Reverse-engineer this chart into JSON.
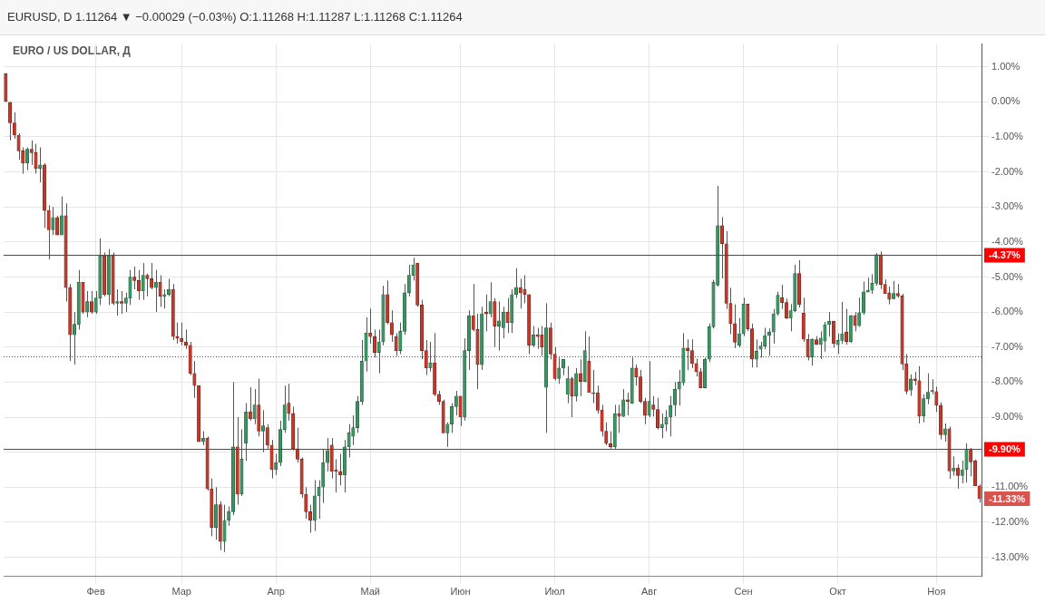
{
  "chart_data": {
    "type": "candlestick",
    "title": "EURO / US DOLLAR, Д",
    "subtitle": "EURUSD, D 1.11264 ▼ −0.00029 (−0.03%) O:1.11268 H:1.11287 L:1.11268 C:1.11264",
    "categories": [
      null,
      null,
      null,
      null,
      null,
      null,
      null,
      null,
      null,
      null,
      null,
      null,
      null,
      null,
      null,
      null,
      null,
      null,
      null,
      null,
      null,
      "Фев",
      null,
      null,
      null,
      null,
      null,
      null,
      null,
      null,
      null,
      null,
      null,
      null,
      null,
      null,
      null,
      null,
      null,
      null,
      null,
      "Мар",
      null,
      null,
      null,
      null,
      null,
      null,
      null,
      null,
      null,
      null,
      null,
      null,
      null,
      null,
      null,
      null,
      null,
      null,
      null,
      null,
      null,
      "Апр",
      null,
      null,
      null,
      null,
      null,
      null,
      null,
      null,
      null,
      null,
      null,
      null,
      null,
      null,
      null,
      null,
      null,
      null,
      null,
      null,
      null,
      "Май",
      null,
      null,
      null,
      null,
      null,
      null,
      null,
      null,
      null,
      null,
      null,
      null,
      null,
      null,
      null,
      null,
      null,
      null,
      null,
      null,
      "Июн",
      null,
      null,
      null,
      null,
      null,
      null,
      null,
      null,
      null,
      null,
      null,
      null,
      null,
      null,
      null,
      null,
      null,
      null,
      null,
      null,
      null,
      "Июл",
      null,
      null,
      null,
      null,
      null,
      null,
      null,
      null,
      null,
      null,
      null,
      null,
      null,
      null,
      null,
      null,
      null,
      null,
      null,
      null,
      null,
      "Авг",
      null,
      null,
      null,
      null,
      null,
      null,
      null,
      null,
      null,
      null,
      null,
      null,
      null,
      null,
      null,
      null,
      null,
      null,
      null,
      null,
      null,
      "Сен",
      null,
      null,
      null,
      null,
      null,
      null,
      null,
      null,
      null,
      null,
      null,
      null,
      null,
      null,
      null,
      null,
      null,
      null,
      null,
      null,
      null,
      "Окт",
      null,
      null,
      null,
      null,
      null,
      null,
      null,
      null,
      null,
      null,
      null,
      null,
      null,
      null,
      null,
      null,
      null,
      null,
      null,
      null,
      null,
      null,
      "Ноя",
      null,
      null,
      null,
      null,
      null,
      null,
      null,
      null,
      null,
      null
    ],
    "ohlc": [
      [
        0.8,
        0.8,
        0,
        0
      ],
      [
        0,
        0,
        -1.1,
        -0.6
      ],
      [
        -0.6,
        -0.3,
        -1.05,
        -0.95
      ],
      [
        -0.95,
        -0.9,
        -1.65,
        -1.4
      ],
      [
        -1.4,
        -1.3,
        -2.05,
        -1.75
      ],
      [
        -1.75,
        -1.3,
        -1.95,
        -1.35
      ],
      [
        -1.35,
        -1.1,
        -1.8,
        -1.45
      ],
      [
        -1.45,
        -1.2,
        -2.05,
        -1.9
      ],
      [
        -1.9,
        -1.3,
        -2.3,
        -1.8
      ],
      [
        -1.8,
        -1.75,
        -3.6,
        -3.1
      ],
      [
        -3.1,
        -2.95,
        -4.5,
        -3.65
      ],
      [
        -3.65,
        -3,
        -3.8,
        -3.3
      ],
      [
        -3.3,
        -3.25,
        -3.8,
        -3.8
      ],
      [
        -3.8,
        -2.7,
        -3.8,
        -3.25
      ],
      [
        -3.25,
        -2.9,
        -5.7,
        -5.3
      ],
      [
        -5.3,
        -5.2,
        -7.4,
        -6.65
      ],
      [
        -6.65,
        -6,
        -7.5,
        -6.35
      ],
      [
        -6.35,
        -4.8,
        -6.5,
        -5.15
      ],
      [
        -5.15,
        -5.15,
        -6.05,
        -6
      ],
      [
        -6,
        -5.4,
        -6.15,
        -5.7
      ],
      [
        -5.7,
        -5.4,
        -6.05,
        -6
      ],
      [
        -6,
        -5.4,
        -6.05,
        -5.6
      ],
      [
        -5.6,
        -3.9,
        -5.8,
        -4.4
      ],
      [
        -4.4,
        -4.3,
        -5.55,
        -5.5
      ],
      [
        -5.5,
        -4.2,
        -5.8,
        -4.4
      ],
      [
        -4.4,
        -4.3,
        -5.8,
        -5.75
      ],
      [
        -5.75,
        -5.35,
        -6.1,
        -5.7
      ],
      [
        -5.7,
        -5.4,
        -6.05,
        -5.75
      ],
      [
        -5.75,
        -5.45,
        -6,
        -5.6
      ],
      [
        -5.6,
        -4.8,
        -5.8,
        -5
      ],
      [
        -5,
        -4.7,
        -5.35,
        -5.1
      ],
      [
        -5.1,
        -4.8,
        -5.65,
        -5.4
      ],
      [
        -5.4,
        -4.6,
        -5.65,
        -4.95
      ],
      [
        -4.95,
        -4.9,
        -5.55,
        -5.05
      ],
      [
        -5.05,
        -4.6,
        -5.35,
        -5.3
      ],
      [
        -5.3,
        -4.8,
        -6,
        -5.15
      ],
      [
        -5.15,
        -4.95,
        -5.85,
        -5.55
      ],
      [
        -5.55,
        -5.35,
        -5.9,
        -5.5
      ],
      [
        -5.5,
        -5.05,
        -5.55,
        -5.35
      ],
      [
        -5.35,
        -5.2,
        -6.8,
        -6.7
      ],
      [
        -6.7,
        -6.3,
        -6.9,
        -6.75
      ],
      [
        -6.75,
        -6.3,
        -6.95,
        -6.85
      ],
      [
        -6.85,
        -6.5,
        -7.05,
        -6.95
      ],
      [
        -6.95,
        -6.85,
        -7.8,
        -7.75
      ],
      [
        -7.75,
        -7.4,
        -8.45,
        -8.1
      ],
      [
        -8.1,
        -8.1,
        -9.7,
        -9.7
      ],
      [
        -9.7,
        -9.4,
        -9.8,
        -9.6
      ],
      [
        -9.6,
        -9.55,
        -11.1,
        -11.05
      ],
      [
        -11.05,
        -10.75,
        -12.4,
        -12.15
      ],
      [
        -12.15,
        -11,
        -12.5,
        -11.5
      ],
      [
        -11.5,
        -11.4,
        -12.8,
        -12.55
      ],
      [
        -12.55,
        -11.5,
        -12.85,
        -11.95
      ],
      [
        -11.95,
        -11.55,
        -12.1,
        -11.7
      ],
      [
        -11.7,
        -8,
        -11.8,
        -9.85
      ],
      [
        -9.85,
        -9,
        -11.5,
        -11.2
      ],
      [
        -11.2,
        -9.35,
        -11.25,
        -10.2
      ],
      [
        -9.75,
        -8.6,
        -10.25,
        -8.85
      ],
      [
        -8.85,
        -8.15,
        -9.1,
        -9.05
      ],
      [
        -9.05,
        -8.2,
        -9.2,
        -8.65
      ],
      [
        -8.65,
        -7.9,
        -9.55,
        -9.4
      ],
      [
        -9.4,
        -8.8,
        -10,
        -9.25
      ],
      [
        -9.3,
        -9.2,
        -9.9,
        -9.8
      ],
      [
        -9.8,
        -9.65,
        -10.75,
        -10.5
      ],
      [
        -10.5,
        -10.05,
        -10.65,
        -10.3
      ],
      [
        -10.3,
        -9.1,
        -10.4,
        -9.35
      ],
      [
        -9.35,
        -8.1,
        -9.45,
        -8.65
      ],
      [
        -8.6,
        -8.05,
        -9.1,
        -8.9
      ],
      [
        -8.9,
        -8.7,
        -9.95,
        -9.9
      ],
      [
        -9.9,
        -9.3,
        -10.3,
        -10.2
      ],
      [
        -10.2,
        -10.15,
        -11.3,
        -11.2
      ],
      [
        -11.2,
        -11,
        -11.9,
        -11.7
      ],
      [
        -11.7,
        -11.5,
        -12.3,
        -11.95
      ],
      [
        -11.95,
        -10.8,
        -12.25,
        -11.25
      ],
      [
        -11.25,
        -10.8,
        -11.9,
        -11
      ],
      [
        -11,
        -9.9,
        -11.45,
        -10.3
      ],
      [
        -10.3,
        -9.6,
        -10.55,
        -9.95
      ],
      [
        -9.8,
        -9.6,
        -10.75,
        -10.55
      ],
      [
        -10.5,
        -10.2,
        -11.15,
        -10.55
      ],
      [
        -10.55,
        -10.05,
        -10.95,
        -10.65
      ],
      [
        -10.65,
        -9.65,
        -11.15,
        -9.85
      ],
      [
        -9.85,
        -9.2,
        -10.15,
        -9.45
      ],
      [
        -9.55,
        -8.95,
        -9.8,
        -9.3
      ],
      [
        -9.3,
        -8.4,
        -9.45,
        -8.55
      ],
      [
        -8.55,
        -6.8,
        -8.65,
        -7.4
      ],
      [
        -7.4,
        -6.15,
        -7.7,
        -6.6
      ],
      [
        -6.6,
        -5.9,
        -6.9,
        -6.7
      ],
      [
        -6.7,
        -6.5,
        -7.3,
        -7.15
      ],
      [
        -7.15,
        -6.5,
        -7.75,
        -6.85
      ],
      [
        -6.85,
        -5.25,
        -6.95,
        -5.5
      ],
      [
        -5.5,
        -5.1,
        -6.35,
        -6.3
      ],
      [
        -6.3,
        -5.95,
        -6.85,
        -6.65
      ],
      [
        -6.7,
        -6.6,
        -7.25,
        -7.1
      ],
      [
        -7.1,
        -6.3,
        -7.2,
        -6.55
      ],
      [
        -6.55,
        -5.2,
        -6.65,
        -5.45
      ],
      [
        -5.45,
        -4.65,
        -5.55,
        -4.95
      ],
      [
        -4.95,
        -4.45,
        -5.1,
        -4.65
      ],
      [
        -4.6,
        -4.6,
        -5.85,
        -5.8
      ],
      [
        -5.8,
        -5.65,
        -7.35,
        -7.1
      ],
      [
        -7.1,
        -6.8,
        -7.8,
        -7.6
      ],
      [
        -7.6,
        -6.85,
        -7.7,
        -7.45
      ],
      [
        -7.45,
        -6.6,
        -8.4,
        -8.35
      ],
      [
        -8.35,
        -8.25,
        -8.65,
        -8.55
      ],
      [
        -8.55,
        -8.5,
        -9.45,
        -9.45
      ],
      [
        -9.45,
        -9.15,
        -9.85,
        -9.2
      ],
      [
        -9.2,
        -8.6,
        -9.45,
        -8.7
      ],
      [
        -8.7,
        -8.25,
        -8.95,
        -8.4
      ],
      [
        -8.4,
        -8.4,
        -9.25,
        -9
      ],
      [
        -9,
        -6.75,
        -9.1,
        -7.1
      ],
      [
        -7.1,
        -5.95,
        -7.65,
        -6.1
      ],
      [
        -6.1,
        -5.2,
        -6.55,
        -6.5
      ],
      [
        -6.5,
        -6.05,
        -8.2,
        -7.5
      ],
      [
        -7.5,
        -5.85,
        -7.65,
        -6.05
      ],
      [
        -6,
        -5.5,
        -6.55,
        -6.05
      ],
      [
        -6.05,
        -5.15,
        -6.15,
        -5.7
      ],
      [
        -5.7,
        -5.6,
        -7,
        -6.4
      ],
      [
        -6.4,
        -5.7,
        -7.1,
        -6.25
      ],
      [
        -6.45,
        -5.85,
        -6.75,
        -6
      ],
      [
        -6,
        -5.6,
        -6.6,
        -6.3
      ],
      [
        -6.3,
        -5.35,
        -6.6,
        -5.5
      ],
      [
        -5.5,
        -4.75,
        -5.6,
        -5.3
      ],
      [
        -5.3,
        -5.05,
        -5.9,
        -5.45
      ],
      [
        -5.35,
        -4.95,
        -5.75,
        -5.5
      ],
      [
        -5.5,
        -5.5,
        -7.2,
        -6.95
      ],
      [
        -6.95,
        -6.4,
        -7,
        -6.65
      ],
      [
        -6.65,
        -6.45,
        -7.05,
        -6.7
      ],
      [
        -6.65,
        -6.4,
        -7.25,
        -7
      ],
      [
        -8.15,
        -5.75,
        -9.45,
        -6.45
      ],
      [
        -6.45,
        -6.3,
        -7.35,
        -7.2
      ],
      [
        -7.2,
        -7,
        -7.95,
        -7.9
      ],
      [
        -7.9,
        -7.3,
        -8.05,
        -7.6
      ],
      [
        -7.6,
        -7.35,
        -7.8,
        -7.35
      ],
      [
        -8.35,
        -7.55,
        -8.6,
        -7.9
      ],
      [
        -7.9,
        -7.85,
        -9,
        -8.4
      ],
      [
        -8.4,
        -7.6,
        -8.55,
        -7.75
      ],
      [
        -7.75,
        -7.35,
        -8.4,
        -7.98
      ],
      [
        -7.98,
        -6.55,
        -8,
        -7.1
      ],
      [
        -7.4,
        -6.7,
        -8.3,
        -8.3
      ],
      [
        -8.3,
        -7.65,
        -8.6,
        -8.33
      ],
      [
        -8.3,
        -8.1,
        -8.9,
        -8.8
      ],
      [
        -8.8,
        -8.65,
        -9.55,
        -9.4
      ],
      [
        -9.4,
        -9.15,
        -9.8,
        -9.75
      ],
      [
        -9.75,
        -9.4,
        -9.9,
        -9.85
      ],
      [
        -9.85,
        -8.65,
        -9.9,
        -8.9
      ],
      [
        -8.9,
        -8.65,
        -9.45,
        -8.98
      ],
      [
        -8.98,
        -8.2,
        -9,
        -8.5
      ],
      [
        -8.5,
        -8.3,
        -8.95,
        -8.55
      ],
      [
        -8.6,
        -7.3,
        -8.62,
        -7.6
      ],
      [
        -7.6,
        -7.5,
        -8.1,
        -7.85
      ],
      [
        -7.85,
        -7.65,
        -8.6,
        -8.55
      ],
      [
        -8.55,
        -8.45,
        -9.2,
        -8.95
      ],
      [
        -8.95,
        -7.4,
        -9,
        -8.55
      ],
      [
        -8.65,
        -8.4,
        -8.98,
        -8.78
      ],
      [
        -8.78,
        -8.45,
        -9.35,
        -9.3
      ],
      [
        -9.3,
        -8.9,
        -9.6,
        -9.2
      ],
      [
        -9.2,
        -8.8,
        -9.4,
        -9
      ],
      [
        -9,
        -8.4,
        -9.55,
        -8.67
      ],
      [
        -8.65,
        -8,
        -8.97,
        -8.2
      ],
      [
        -8.2,
        -7.65,
        -8.67,
        -8
      ],
      [
        -8.02,
        -6.6,
        -8.1,
        -7.03
      ],
      [
        -7.03,
        -6.78,
        -7.66,
        -7.1
      ],
      [
        -7.1,
        -6.78,
        -7.6,
        -7.47
      ],
      [
        -7.47,
        -7.33,
        -7.84,
        -7.7
      ],
      [
        -7.7,
        -7.6,
        -8.18,
        -8.16
      ],
      [
        -8.16,
        -7.3,
        -8.18,
        -7.35
      ],
      [
        -7.35,
        -6.33,
        -7.43,
        -6.42
      ],
      [
        -6.42,
        -5.08,
        -6.47,
        -5.15
      ],
      [
        -5.23,
        -2.4,
        -5.27,
        -3.53
      ],
      [
        -3.53,
        -3.29,
        -5.04,
        -4.05
      ],
      [
        -4.05,
        -3.69,
        -5.91,
        -5.75
      ],
      [
        -5.75,
        -5.31,
        -6.63,
        -6.33
      ],
      [
        -6.33,
        -5.78,
        -7.03,
        -6.86
      ],
      [
        -6.95,
        -6.17,
        -7.01,
        -6.62
      ],
      [
        -6.62,
        -5.59,
        -6.69,
        -5.77
      ],
      [
        -5.77,
        -5.77,
        -6.54,
        -6.48
      ],
      [
        -6.48,
        -6.33,
        -7.58,
        -7.35
      ],
      [
        -7.35,
        -6.78,
        -7.58,
        -7.12
      ],
      [
        -7.06,
        -6.85,
        -7.3,
        -6.97
      ],
      [
        -6.97,
        -6.45,
        -7.06,
        -6.67
      ],
      [
        -6.67,
        -6.47,
        -7.25,
        -6.57
      ],
      [
        -6.57,
        -5.91,
        -6.9,
        -6.05
      ],
      [
        -6.05,
        -5.42,
        -6.1,
        -5.52
      ],
      [
        -5.59,
        -5.22,
        -5.91,
        -5.73
      ],
      [
        -5.73,
        -5.62,
        -6.2,
        -6.17
      ],
      [
        -6.17,
        -5.77,
        -6.55,
        -5.96
      ],
      [
        -5.96,
        -4.65,
        -6,
        -4.9
      ],
      [
        -4.9,
        -4.52,
        -5.87,
        -5.79
      ],
      [
        -6.03,
        -5.59,
        -6.85,
        -6.78
      ],
      [
        -6.78,
        -6.63,
        -7.38,
        -7.29
      ],
      [
        -7.28,
        -6.75,
        -7.53,
        -6.78
      ],
      [
        -6.79,
        -6.69,
        -6.94,
        -6.92
      ],
      [
        -6.92,
        -6.55,
        -7.34,
        -6.74
      ],
      [
        -6.83,
        -6.28,
        -7.13,
        -6.36
      ],
      [
        -6.36,
        -6,
        -6.7,
        -6.26
      ],
      [
        -6.26,
        -6.26,
        -7.02,
        -6.9
      ],
      [
        -6.93,
        -6.61,
        -7.2,
        -6.81
      ],
      [
        -6.81,
        -5.71,
        -6.91,
        -6.62
      ],
      [
        -6.57,
        -5.91,
        -6.93,
        -6.84
      ],
      [
        -6.84,
        -6.08,
        -6.88,
        -6.1
      ],
      [
        -6.1,
        -6,
        -6.55,
        -6.39
      ],
      [
        -6.39,
        -5.59,
        -6.42,
        -6.02
      ],
      [
        -6.03,
        -5.13,
        -6.08,
        -5.42
      ],
      [
        -5.43,
        -5.02,
        -5.43,
        -5.38
      ],
      [
        -5.38,
        -4.92,
        -5.48,
        -5.18
      ],
      [
        -5.18,
        -4.32,
        -5.25,
        -4.36
      ],
      [
        -4.36,
        -4.27,
        -5.34,
        -5.21
      ],
      [
        -5.21,
        -5.07,
        -5.47,
        -5.47
      ],
      [
        -5.45,
        -5.27,
        -5.78,
        -5.64
      ],
      [
        -5.62,
        -5.11,
        -5.64,
        -5.47
      ],
      [
        -5.47,
        -5.2,
        -5.59,
        -5.54
      ],
      [
        -5.54,
        -5.48,
        -7.66,
        -7.48
      ],
      [
        -7.48,
        -7.2,
        -8.35,
        -8.26
      ],
      [
        -8.23,
        -7.78,
        -8.39,
        -7.91
      ],
      [
        -7.91,
        -7.71,
        -8.09,
        -7.96
      ],
      [
        -7.96,
        -7.55,
        -9.18,
        -8.97
      ],
      [
        -8.97,
        -8.35,
        -9.15,
        -8.47
      ],
      [
        -8.48,
        -7.75,
        -8.63,
        -8.29
      ],
      [
        -8.24,
        -7.92,
        -8.35,
        -8.27
      ],
      [
        -8.27,
        -8.13,
        -8.85,
        -8.66
      ],
      [
        -8.66,
        -8.58,
        -9.64,
        -9.5
      ],
      [
        -9.5,
        -9.18,
        -9.7,
        -9.33
      ],
      [
        -9.33,
        -9.27,
        -10.76,
        -10.54
      ],
      [
        -10.54,
        -10.12,
        -10.67,
        -10.45
      ],
      [
        -10.45,
        -10.35,
        -11.04,
        -10.67
      ],
      [
        -10.67,
        -10.24,
        -10.89,
        -10.5
      ],
      [
        -10.5,
        -9.75,
        -10.87,
        -9.91
      ],
      [
        -9.91,
        -9.88,
        -10.69,
        -10.28
      ],
      [
        -10.25,
        -10.21,
        -10.96,
        -10.96
      ],
      [
        -10.96,
        -10.92,
        -11.44,
        -11.33
      ]
    ],
    "ylim": [
      -13.55,
      1.65
    ],
    "yticks": [
      {
        "value": 1,
        "label": "1.00%"
      },
      {
        "value": 0,
        "label": "0.00%"
      },
      {
        "value": -1,
        "label": "-1.00%"
      },
      {
        "value": -2,
        "label": "-2.00%"
      },
      {
        "value": -3,
        "label": "-3.00%"
      },
      {
        "value": -4,
        "label": "-4.00%"
      },
      {
        "value": -5,
        "label": "-5.00%"
      },
      {
        "value": -6,
        "label": "-6.00%"
      },
      {
        "value": -7,
        "label": "-7.00%"
      },
      {
        "value": -8,
        "label": "-8.00%"
      },
      {
        "value": -9,
        "label": "-9.00%"
      },
      {
        "value": -10,
        "label": null
      },
      {
        "value": -11,
        "label": "-11.00%"
      },
      {
        "value": -12,
        "label": "-12.00%"
      },
      {
        "value": -13,
        "label": "-13.00%"
      }
    ],
    "ref_lines": [
      {
        "axis": "y",
        "value": -4.37,
        "label": "-4.37%",
        "color": "#ff0000"
      },
      {
        "axis": "y",
        "value": -9.9,
        "label": "-9.90%",
        "color": "#ff0000"
      },
      {
        "axis": "y",
        "value": -7.27,
        "color": "#d02020",
        "line_style": "dotted"
      }
    ],
    "annotations": [
      "-11.33%"
    ],
    "grid": true,
    "legend": false
  }
}
